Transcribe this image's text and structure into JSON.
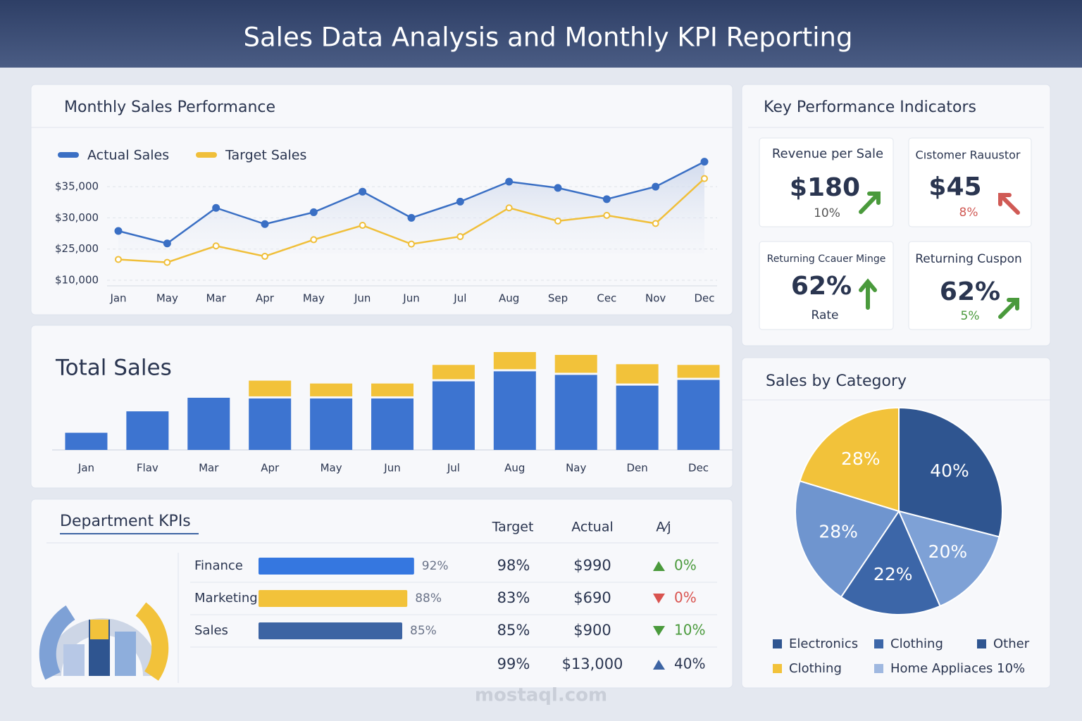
{
  "header": {
    "title": "Sales Data Analysis and Monthly KPI Reporting"
  },
  "chart_data": [
    {
      "type": "line",
      "title": "Monthly Sales Performance",
      "categories": [
        "Jan",
        "May",
        "Mar",
        "Apr",
        "May",
        "Jun",
        "Jun",
        "Jul",
        "Aug",
        "Sep",
        "Cec",
        "Nov",
        "Dec"
      ],
      "series": [
        {
          "name": "Actual Sales",
          "color": "#3a6fc4",
          "values": [
            27900,
            25900,
            31600,
            29000,
            30900,
            34200,
            30000,
            32600,
            35800,
            34800,
            33000,
            35000,
            39000
          ]
        },
        {
          "name": "Target Sales",
          "color": "#f0bf3a",
          "values": [
            20000,
            18600,
            25500,
            21500,
            26500,
            28800,
            25800,
            27000,
            31600,
            29500,
            30400,
            29100,
            36300
          ]
        }
      ],
      "ylim": [
        10000,
        40000
      ],
      "yticks": [
        {
          "value": 35000,
          "label": "$35,000"
        },
        {
          "value": 30000,
          "label": "$30,000"
        },
        {
          "value": 25000,
          "label": "$25,000"
        },
        {
          "value": 10000,
          "label": "$10,000"
        }
      ],
      "grid": true
    },
    {
      "type": "stacked-bar",
      "title": "Total Sales",
      "categories": [
        "Jan",
        "Flav",
        "Mar",
        "Apr",
        "May",
        "Jun",
        "Jul",
        "Aug",
        "Nay",
        "Den",
        "Dec"
      ],
      "series": [
        {
          "color": "#3d74d0",
          "values": [
            24,
            54,
            73,
            72,
            72,
            72,
            96,
            110,
            105,
            90,
            98
          ]
        },
        {
          "color": "#f2c23a",
          "values": [
            0,
            0,
            0,
            22,
            18,
            18,
            20,
            24,
            25,
            27,
            18
          ]
        }
      ]
    },
    {
      "type": "pie",
      "title": "Sales by Category",
      "values": [
        40,
        20,
        22,
        28,
        28
      ],
      "value_labels": [
        "40%",
        "20%",
        "22%",
        "28%",
        "28%"
      ],
      "colors": [
        "#2f5590",
        "#7ea1d6",
        "#3c66a8",
        "#6f95cf",
        "#f2c23a"
      ],
      "legend": [
        {
          "name": "Electronics",
          "color": "#2f5590"
        },
        {
          "name": "Clothing",
          "color": "#3c66a8"
        },
        {
          "name": "Other",
          "color": "#2f5590"
        },
        {
          "name": "Clothing",
          "color": "#f2c23a"
        },
        {
          "name": "Home Appliaces 10%",
          "color": "#9fb8e0"
        }
      ]
    }
  ],
  "kpis": {
    "title": "Key Performance  Indicators",
    "cards": [
      {
        "label": "Revenue per Sale",
        "value": "$180",
        "note": "10%"
      },
      {
        "label": "Cıstomer Rauustor",
        "value": "$45",
        "note": "8%"
      },
      {
        "label": "Returning Ccauer Minge",
        "value": "62%",
        "note": "Rate"
      },
      {
        "label": "Returning Cuspon",
        "value": "62%",
        "note": "5%"
      }
    ]
  },
  "departments": {
    "title": "Department KPIs",
    "columns": [
      "Target",
      "Actual",
      "A⁄j"
    ],
    "rows": [
      {
        "name": "Finance",
        "progress": 92,
        "progress_label": "92%",
        "color": "#3577e0",
        "target": "98%",
        "actual": "$990",
        "change": "0%"
      },
      {
        "name": "Marketing",
        "progress": 88,
        "progress_label": "88%",
        "color": "#f2c23a",
        "target": "83%",
        "actual": "$690",
        "change": "0%"
      },
      {
        "name": "Sales",
        "progress": 85,
        "progress_label": "85%",
        "color": "#3d64a3",
        "target": "85%",
        "actual": "$900",
        "change": "10%"
      },
      {
        "target": "99%",
        "actual": "$13,000",
        "change": "40%"
      }
    ]
  },
  "watermark": "mostaql.com"
}
